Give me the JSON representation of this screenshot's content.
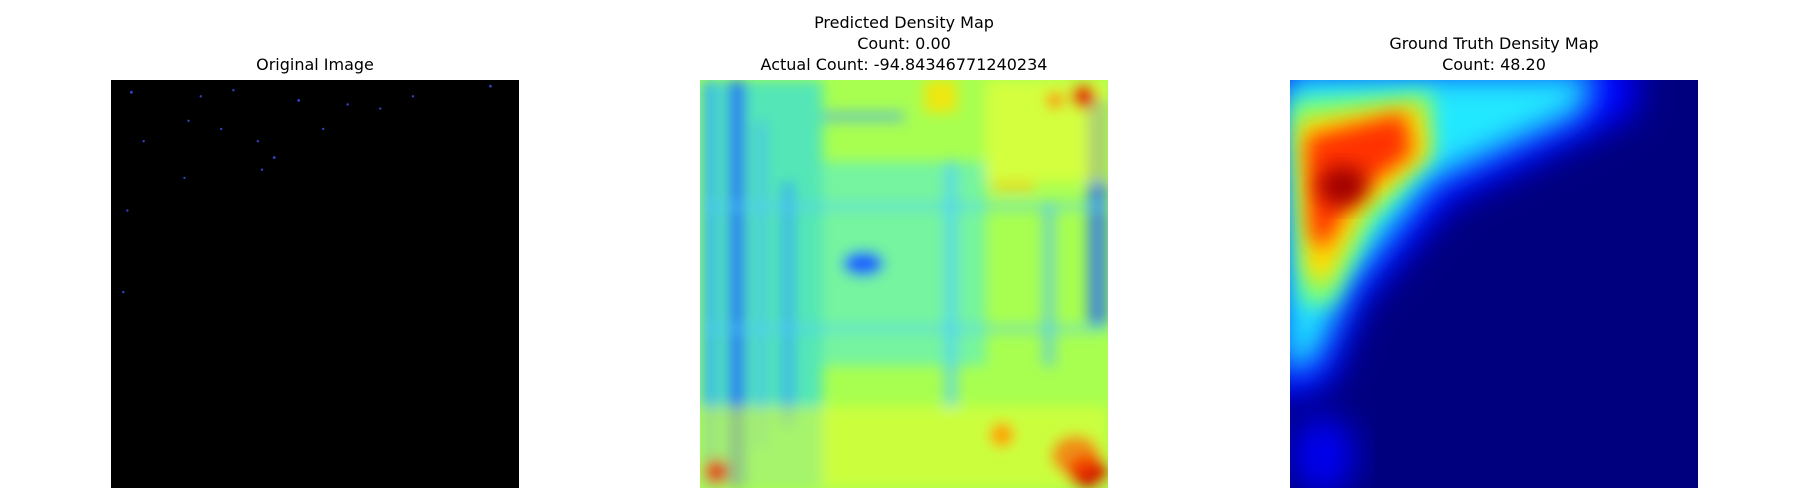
{
  "panels": [
    {
      "title_lines": [
        "Original Image"
      ]
    },
    {
      "title_lines": [
        "Predicted Density Map",
        "Count: 0.00",
        "Actual Count: -94.84346771240234"
      ]
    },
    {
      "title_lines": [
        "Ground Truth Density Map",
        "Count: 48.20"
      ]
    }
  ]
}
